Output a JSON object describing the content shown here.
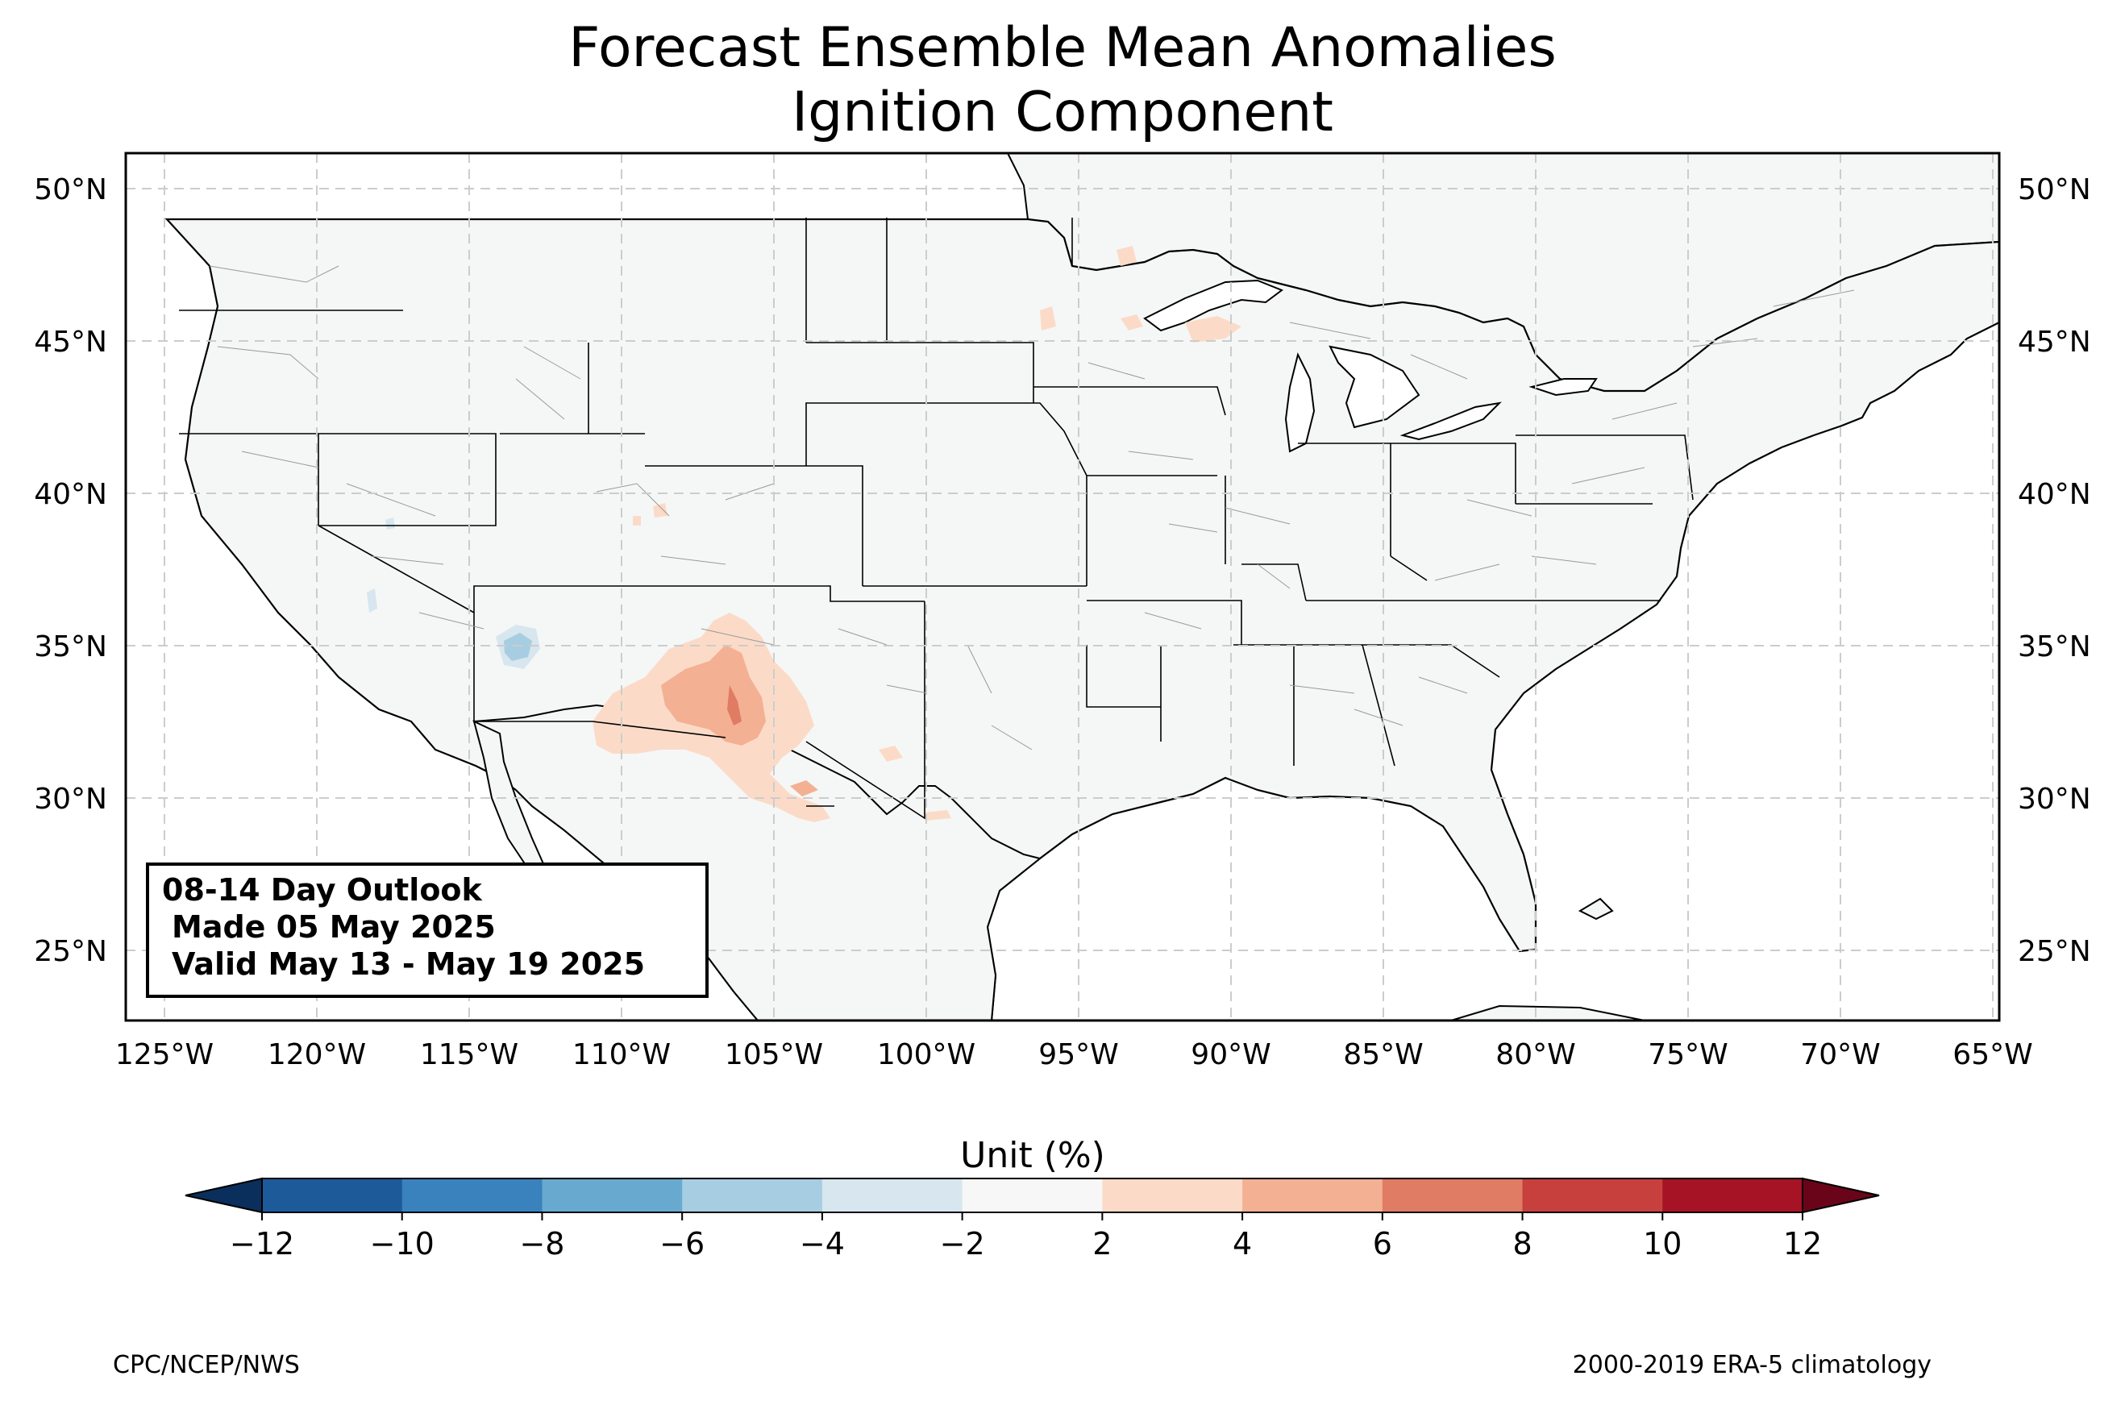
{
  "title_line1": "Forecast Ensemble Mean Anomalies",
  "title_line2": "Ignition Component",
  "outlook": {
    "line1": "08-14 Day Outlook",
    "line2": "Made 05 May 2025",
    "line3": "Valid May 13 - May 19 2025"
  },
  "lat_labels": [
    "50°N",
    "45°N",
    "40°N",
    "35°N",
    "30°N",
    "25°N"
  ],
  "lon_labels": [
    "125°W",
    "120°W",
    "115°W",
    "110°W",
    "105°W",
    "100°W",
    "95°W",
    "90°W",
    "85°W",
    "80°W",
    "75°W",
    "70°W",
    "65°W"
  ],
  "colorbar": {
    "title": "Unit (%)",
    "ticks": [
      "−12",
      "−10",
      "−8",
      "−6",
      "−4",
      "−2",
      "2",
      "4",
      "6",
      "8",
      "10",
      "12"
    ],
    "colors": [
      "#1d5a9a",
      "#3a82be",
      "#68a9d0",
      "#a7cde2",
      "#d7e6ef",
      "#f7f7f7",
      "#fbdbc8",
      "#f4b093",
      "#e07c63",
      "#c7403e",
      "#a51325"
    ],
    "under_color": "#0b2f5c",
    "over_color": "#6a0519"
  },
  "footer_left": "CPC/NCEP/NWS",
  "footer_right": "2000-2019 ERA-5 climatology",
  "colors": {
    "land": "#f5f7f6",
    "grid": "#cccccc",
    "anomaly_positive": "#fbdbc8",
    "anomaly_positive_strong": "#f4b093",
    "anomaly_negative": "#d7e6ef",
    "anomaly_negative_strong": "#a7cde2"
  }
}
